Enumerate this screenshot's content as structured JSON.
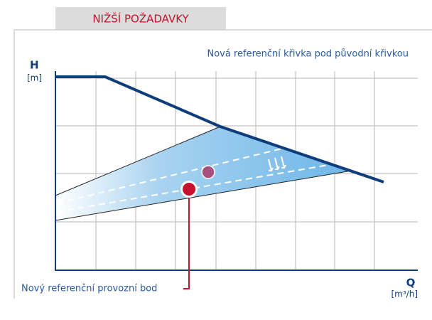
{
  "tab": "NIŽŠÍ POŽADAVKY",
  "curve_note": "Nová referenční křivka pod původní křivkou",
  "y_axis": {
    "label": "H",
    "unit": "[m]"
  },
  "x_axis": {
    "label": "Q",
    "unit": "[m³/h]"
  },
  "point_label": "Nový referenční provozní bod"
}
